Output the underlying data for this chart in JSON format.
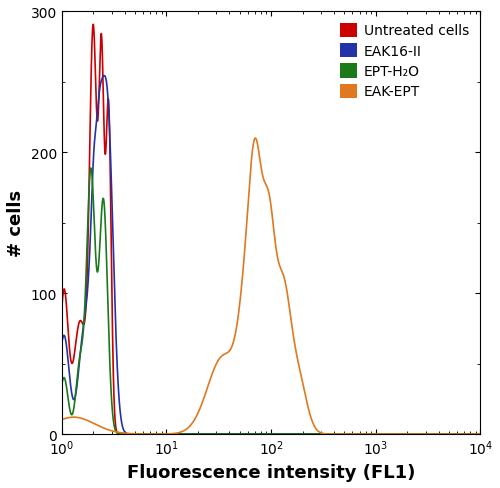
{
  "title": "",
  "xlabel": "Fluorescence intensity (FL1)",
  "ylabel": "# cells",
  "xlim_log": [
    0,
    4
  ],
  "ylim": [
    0,
    300
  ],
  "yticks": [
    0,
    100,
    200,
    300
  ],
  "legend": [
    {
      "label": "Untreated cells",
      "color": "#cc0000"
    },
    {
      "label": "EAK16-II",
      "color": "#2233aa"
    },
    {
      "label": "EPT-H₂O",
      "color": "#1a7a1a"
    },
    {
      "label": "EAK-EPT",
      "color": "#e07820"
    }
  ],
  "background_color": "#ffffff"
}
